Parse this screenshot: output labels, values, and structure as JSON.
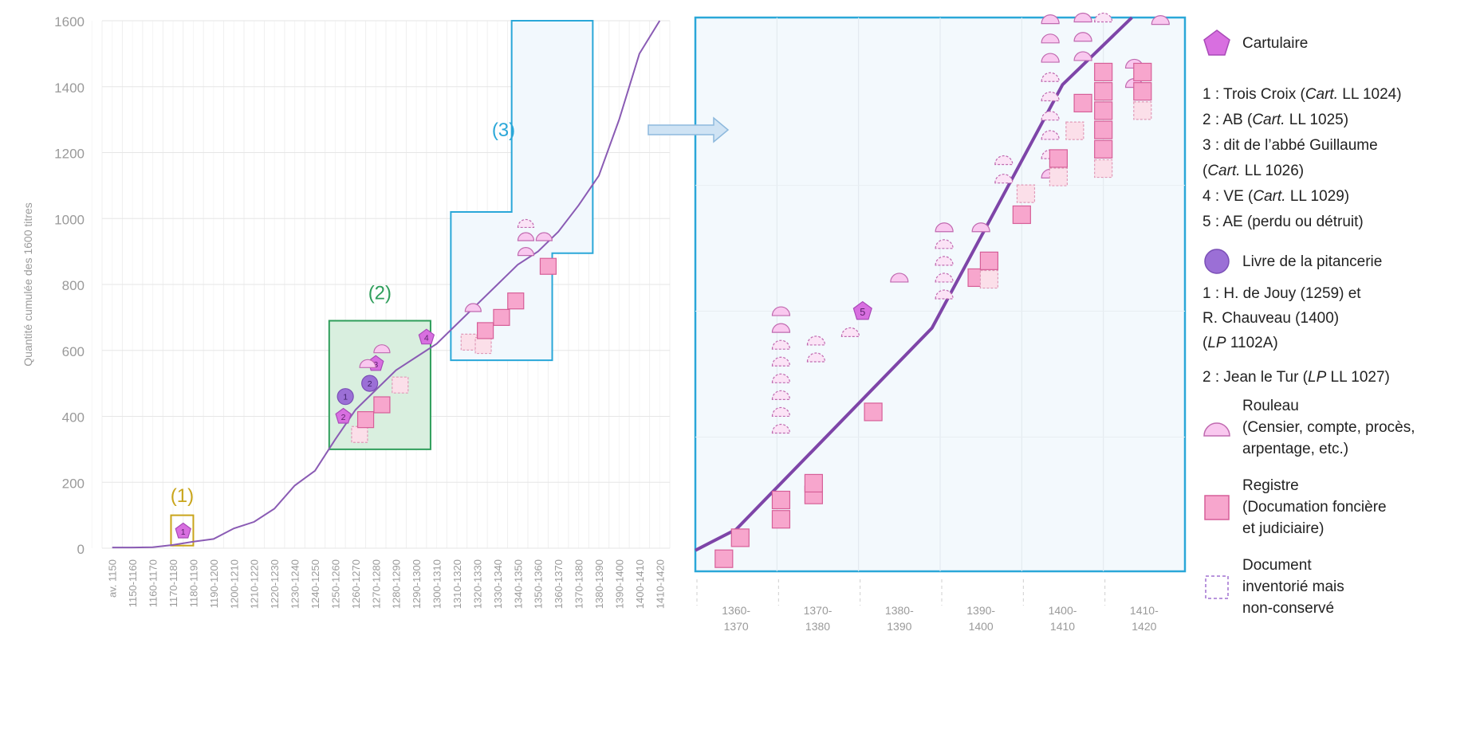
{
  "chart_data": [
    {
      "type": "line",
      "ylabel": "Quantité cumulée des 1600 titres",
      "ylim": [
        0,
        1600
      ],
      "yticks": [
        "0",
        "200",
        "400",
        "600",
        "800",
        "1000",
        "1200",
        "1400",
        "1600"
      ],
      "categories": [
        "av. 1150",
        "1150-1160",
        "1160-1170",
        "1170-1180",
        "1180-1190",
        "1190-1200",
        "1200-1210",
        "1210-1220",
        "1220-1230",
        "1230-1240",
        "1240-1250",
        "1250-1260",
        "1260-1270",
        "1270-1280",
        "1280-1290",
        "1290-1300",
        "1300-1310",
        "1310-1320",
        "1320-1330",
        "1330-1340",
        "1340-1350",
        "1350-1360",
        "1360-1370",
        "1370-1380",
        "1380-1390",
        "1390-1400",
        "1400-1410",
        "1410-1420"
      ],
      "series": [
        {
          "values": [
            2,
            2,
            3,
            10,
            20,
            28,
            60,
            80,
            120,
            190,
            235,
            330,
            420,
            480,
            540,
            580,
            620,
            680,
            740,
            800,
            860,
            900,
            960,
            1040,
            1130,
            1300,
            1500,
            1600
          ]
        }
      ],
      "zones": [
        {
          "label": "(1)",
          "color": "#c9a51b"
        },
        {
          "label": "(2)",
          "color": "#2f9e5b"
        },
        {
          "label": "(3)",
          "color": "#2aa7d8"
        }
      ],
      "markers": [
        {
          "type": "cartulaire",
          "label": "1",
          "x": 3.5,
          "y": 52
        },
        {
          "type": "cartulaire",
          "label": "2",
          "x": 11.4,
          "y": 400
        },
        {
          "type": "cartulaire",
          "label": "3",
          "x": 13.0,
          "y": 560
        },
        {
          "type": "cartulaire",
          "label": "4",
          "x": 15.5,
          "y": 640
        },
        {
          "type": "pitancerie",
          "label": "1",
          "x": 11.5,
          "y": 460
        },
        {
          "type": "pitancerie",
          "label": "2",
          "x": 12.7,
          "y": 500
        },
        {
          "type": "rouleau",
          "x": 12.6,
          "y": 560,
          "lost": false
        },
        {
          "type": "rouleau",
          "x": 13.3,
          "y": 605,
          "lost": false
        },
        {
          "type": "rouleau",
          "x": 17.8,
          "y": 730,
          "lost": false
        },
        {
          "type": "rouleau",
          "x": 20.4,
          "y": 985,
          "lost": true
        },
        {
          "type": "rouleau",
          "x": 20.4,
          "y": 945,
          "lost": false
        },
        {
          "type": "rouleau",
          "x": 20.4,
          "y": 900,
          "lost": false
        },
        {
          "type": "rouleau",
          "x": 21.3,
          "y": 945,
          "lost": false
        },
        {
          "type": "registre",
          "x": 12.2,
          "y": 345,
          "lost": true
        },
        {
          "type": "registre",
          "x": 12.5,
          "y": 390,
          "lost": false
        },
        {
          "type": "registre",
          "x": 13.3,
          "y": 435,
          "lost": false
        },
        {
          "type": "registre",
          "x": 14.2,
          "y": 495,
          "lost": true
        },
        {
          "type": "registre",
          "x": 17.6,
          "y": 625,
          "lost": true
        },
        {
          "type": "registre",
          "x": 18.3,
          "y": 615,
          "lost": true
        },
        {
          "type": "registre",
          "x": 18.4,
          "y": 660,
          "lost": false
        },
        {
          "type": "registre",
          "x": 19.2,
          "y": 700,
          "lost": false
        },
        {
          "type": "registre",
          "x": 19.9,
          "y": 750,
          "lost": false
        },
        {
          "type": "registre",
          "x": 21.5,
          "y": 855,
          "lost": false
        }
      ]
    },
    {
      "type": "line",
      "categories": [
        "1360-\n1370",
        "1370-\n1380",
        "1380-\n1390",
        "1390-\n1400",
        "1400-\n1410",
        "1410-\n1420"
      ],
      "series": [
        {
          "values": [
            960,
            1040,
            1130,
            1300,
            1500,
            1600
          ]
        }
      ],
      "markers": [
        {
          "type": "cartulaire",
          "label": "5",
          "x": 2.45,
          "y": 1205
        }
      ]
    }
  ],
  "legend": {
    "cartulaire": {
      "label": "Cartulaire",
      "items": [
        [
          "1 : Trois Croix (",
          "Cart.",
          " LL 1024)"
        ],
        [
          "2 : AB (",
          "Cart.",
          " LL 1025)"
        ],
        [
          "3 : dit de l’abbé Guillaume",
          "",
          ""
        ],
        [
          "(",
          "Cart.",
          " LL 1026)"
        ],
        [
          "4 : VE (",
          "Cart.",
          " LL 1029)"
        ],
        [
          "5 : AE (perdu ou détruit)",
          "",
          ""
        ]
      ]
    },
    "pitancerie": {
      "label": "Livre de la pitancerie",
      "items": [
        [
          "1 : H. de Jouy (1259) et",
          "",
          ""
        ],
        [
          "R. Chauveau (1400)",
          "",
          ""
        ],
        [
          "(",
          "LP",
          " 1102A)"
        ],
        [
          "2 : Jean le Tur (",
          "LP",
          " LL 1027)"
        ]
      ]
    },
    "rouleau": {
      "lines": [
        "Rouleau",
        "(Censier, compte, procès,",
        "arpentage, etc.)"
      ]
    },
    "registre": {
      "lines": [
        "Registre",
        "(Documation foncière",
        "et judiciaire)"
      ]
    },
    "lost": {
      "lines": [
        "Document",
        "inventorié mais",
        "non-conservé"
      ]
    }
  },
  "colors": {
    "line": "#8a5bb4",
    "cartulaire": "#d86fe0",
    "pitancerie": "#9b6fd6",
    "rouleau_fill": "#f9c8ef",
    "registre_fill": "#f7a6cd",
    "registre_stroke": "#d65f98",
    "zone1": "#c9a51b",
    "zone2": "#2f9e5b",
    "zone3": "#2aa7d8"
  }
}
